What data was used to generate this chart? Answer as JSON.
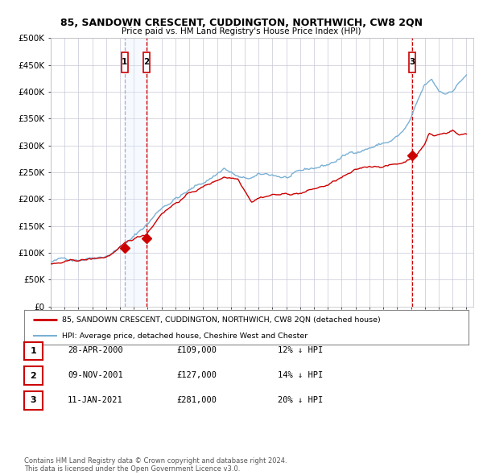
{
  "title": "85, SANDOWN CRESCENT, CUDDINGTON, NORTHWICH, CW8 2QN",
  "subtitle": "Price paid vs. HM Land Registry's House Price Index (HPI)",
  "ylim": [
    0,
    500000
  ],
  "yticks": [
    0,
    50000,
    100000,
    150000,
    200000,
    250000,
    300000,
    350000,
    400000,
    450000,
    500000
  ],
  "ytick_labels": [
    "£0",
    "£50K",
    "£100K",
    "£150K",
    "£200K",
    "£250K",
    "£300K",
    "£350K",
    "£400K",
    "£450K",
    "£500K"
  ],
  "sale_prices": [
    109000,
    127000,
    281000
  ],
  "sale_labels": [
    "1",
    "2",
    "3"
  ],
  "sale_table": [
    {
      "num": "1",
      "date": "28-APR-2000",
      "price": "£109,000",
      "hpi": "12% ↓ HPI"
    },
    {
      "num": "2",
      "date": "09-NOV-2001",
      "price": "£127,000",
      "hpi": "14% ↓ HPI"
    },
    {
      "num": "3",
      "date": "11-JAN-2021",
      "price": "£281,000",
      "hpi": "20% ↓ HPI"
    }
  ],
  "legend_property_label": "85, SANDOWN CRESCENT, CUDDINGTON, NORTHWICH, CW8 2QN (detached house)",
  "legend_hpi_label": "HPI: Average price, detached house, Cheshire West and Chester",
  "property_line_color": "#cc0000",
  "hpi_line_color": "#7ab0d4",
  "marker_color": "#cc0000",
  "background_color": "#ffffff",
  "grid_color": "#c8c8d8",
  "shade_color": "#ddeeff",
  "copyright_text": "Contains HM Land Registry data © Crown copyright and database right 2024.\nThis data is licensed under the Open Government Licence v3.0."
}
